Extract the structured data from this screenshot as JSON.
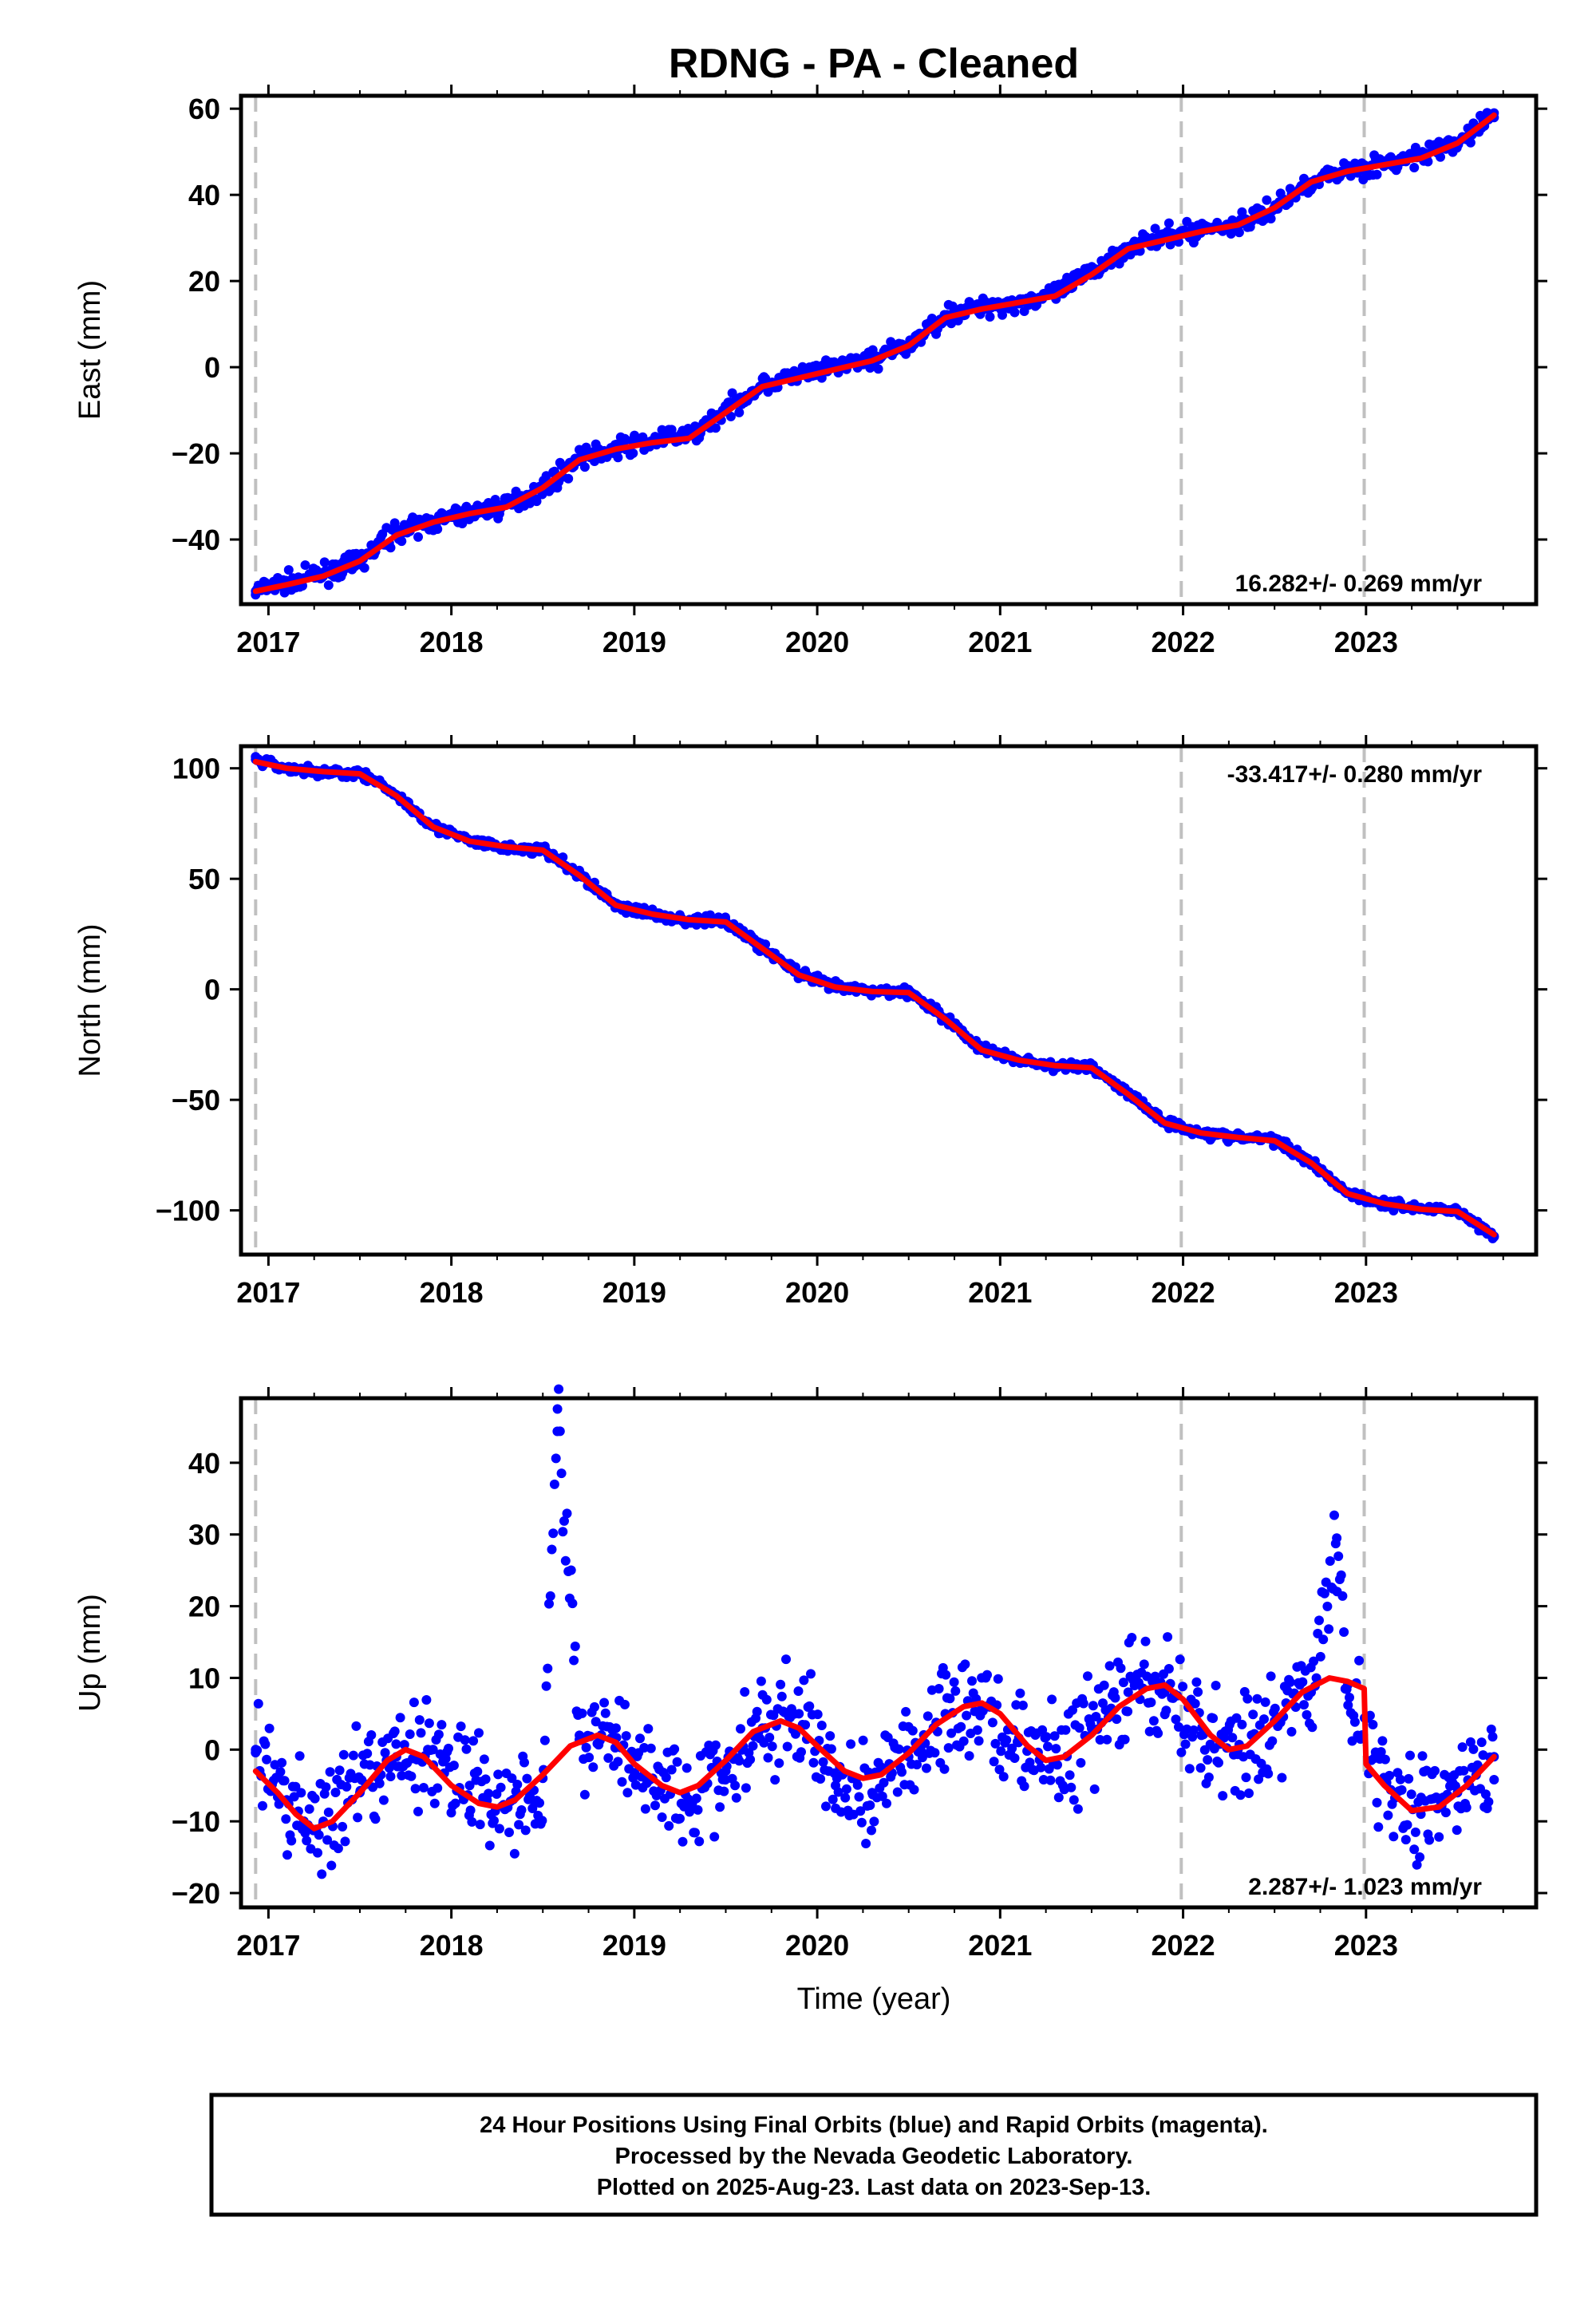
{
  "figure": {
    "title": "RDNG  - PA - Cleaned",
    "xlabel": "Time (year)",
    "footer": [
      "24 Hour Positions Using Final Orbits (blue) and Rapid Orbits (magenta).",
      "Processed by the Nevada Geodetic Laboratory.",
      "Plotted on 2025-Aug-23. Last data on 2023-Sep-13."
    ],
    "colors": {
      "points": "#0000ff",
      "fit": "#ff0000",
      "guides": "#c0c0c0",
      "frame": "#000000"
    },
    "x_tick_labels": [
      "2017",
      "2018",
      "2019",
      "2020",
      "2021",
      "2022",
      "2023"
    ],
    "vertical_guides_year": [
      2016.93,
      2021.99,
      2022.99
    ]
  },
  "chart_data": [
    {
      "type": "scatter",
      "panel": "east",
      "ylabel": "East (mm)",
      "rate_label": "16.282+/- 0.269 mm/yr",
      "rate_position": "bottom-right",
      "xlim": [
        2016.85,
        2023.93
      ],
      "ylim": [
        -55,
        63
      ],
      "yticks": [
        -40,
        -20,
        0,
        20,
        40,
        60
      ],
      "y_tick_labels": [
        "−40",
        "−20",
        "0",
        "20",
        "40",
        "60"
      ],
      "series": [
        {
          "role": "daily positions (blue)",
          "x": [
            2016.93,
            2017.1,
            2017.3,
            2017.5,
            2017.7,
            2017.9,
            2018.1,
            2018.3,
            2018.5,
            2018.7,
            2018.9,
            2019.1,
            2019.3,
            2019.5,
            2019.7,
            2019.9,
            2020.1,
            2020.3,
            2020.5,
            2020.7,
            2020.9,
            2021.1,
            2021.3,
            2021.5,
            2021.7,
            2021.9,
            2022.1,
            2022.3,
            2022.5,
            2022.7,
            2022.9,
            2023.1,
            2023.3,
            2023.5,
            2023.7
          ],
          "y": [
            -52,
            -50,
            -48,
            -45,
            -38,
            -36,
            -34,
            -32,
            -28,
            -21,
            -19,
            -17,
            -16,
            -10,
            -4,
            -2,
            0,
            2,
            5,
            12,
            14,
            15,
            17,
            22,
            28,
            30,
            32,
            33,
            37,
            43,
            46,
            47,
            49,
            52,
            59
          ]
        },
        {
          "role": "fit (red)",
          "x": [
            2016.93,
            2017.1,
            2017.3,
            2017.5,
            2017.7,
            2017.9,
            2018.1,
            2018.3,
            2018.5,
            2018.7,
            2018.9,
            2019.1,
            2019.3,
            2019.5,
            2019.7,
            2019.9,
            2020.1,
            2020.3,
            2020.5,
            2020.7,
            2020.9,
            2021.1,
            2021.3,
            2021.5,
            2021.7,
            2021.9,
            2022.1,
            2022.3,
            2022.5,
            2022.7,
            2022.9,
            2023.1,
            2023.3,
            2023.5,
            2023.7
          ],
          "y": [
            -52,
            -50.5,
            -48.5,
            -45,
            -39,
            -36,
            -34,
            -32.5,
            -28,
            -21.5,
            -19,
            -17.5,
            -16.5,
            -10.5,
            -4.5,
            -2.5,
            -0.5,
            1.5,
            5,
            11.5,
            13.5,
            15,
            16.5,
            21.5,
            27.5,
            29.5,
            31.5,
            33,
            37,
            43,
            45.5,
            47,
            48.5,
            52,
            58.5
          ]
        }
      ]
    },
    {
      "type": "scatter",
      "panel": "north",
      "ylabel": "North (mm)",
      "rate_label": "-33.417+/- 0.280 mm/yr",
      "rate_position": "top-right",
      "xlim": [
        2016.85,
        2023.93
      ],
      "ylim": [
        -120,
        110
      ],
      "yticks": [
        -100,
        -50,
        0,
        50,
        100
      ],
      "y_tick_labels": [
        "−100",
        "−50",
        "0",
        "50",
        "100"
      ],
      "series": [
        {
          "role": "daily positions (blue)",
          "x": [
            2016.93,
            2017.1,
            2017.3,
            2017.5,
            2017.7,
            2017.9,
            2018.1,
            2018.3,
            2018.5,
            2018.7,
            2018.9,
            2019.1,
            2019.3,
            2019.5,
            2019.7,
            2019.9,
            2020.1,
            2020.3,
            2020.5,
            2020.7,
            2020.9,
            2021.1,
            2021.3,
            2021.5,
            2021.7,
            2021.9,
            2022.1,
            2022.3,
            2022.5,
            2022.7,
            2022.9,
            2023.1,
            2023.3,
            2023.5,
            2023.7
          ],
          "y": [
            104,
            100,
            98,
            98,
            88,
            74,
            67,
            64,
            63,
            52,
            38,
            34,
            31,
            31,
            19,
            7,
            1,
            -1,
            -1,
            -13,
            -27,
            -32,
            -35,
            -35,
            -47,
            -60,
            -65,
            -67,
            -68,
            -78,
            -92,
            -97,
            -99,
            -100,
            -112
          ]
        },
        {
          "role": "fit (red)",
          "x": [
            2016.93,
            2017.1,
            2017.3,
            2017.5,
            2017.7,
            2017.9,
            2018.1,
            2018.3,
            2018.5,
            2018.7,
            2018.9,
            2019.1,
            2019.3,
            2019.5,
            2019.7,
            2019.9,
            2020.1,
            2020.3,
            2020.5,
            2020.7,
            2020.9,
            2021.1,
            2021.3,
            2021.5,
            2021.7,
            2021.9,
            2022.1,
            2022.3,
            2022.5,
            2022.7,
            2022.9,
            2023.1,
            2023.3,
            2023.5,
            2023.7
          ],
          "y": [
            103,
            100,
            98.5,
            97.5,
            87.5,
            73.5,
            67,
            64.5,
            63,
            51.5,
            38,
            34,
            31.5,
            30.5,
            18.5,
            6.5,
            1,
            -1,
            -1.5,
            -13.5,
            -27.5,
            -32,
            -34.5,
            -35.5,
            -47.5,
            -60.5,
            -65,
            -67,
            -68.5,
            -78.5,
            -92.5,
            -97,
            -99.5,
            -100.5,
            -111
          ]
        }
      ]
    },
    {
      "type": "scatter",
      "panel": "up",
      "ylabel": "Up (mm)",
      "rate_label": "2.287+/- 1.023 mm/yr",
      "rate_position": "bottom-right",
      "xlim": [
        2016.85,
        2023.93
      ],
      "ylim": [
        -22,
        49
      ],
      "yticks": [
        -20,
        -10,
        0,
        10,
        20,
        30,
        40
      ],
      "y_tick_labels": [
        "−20",
        "−10",
        "0",
        "10",
        "20",
        "30",
        "40"
      ],
      "series": [
        {
          "role": "daily positions (blue)",
          "x": [
            2016.93,
            2017.1,
            2017.3,
            2017.5,
            2017.7,
            2017.9,
            2018.1,
            2018.3,
            2018.5,
            2018.58,
            2018.7,
            2018.9,
            2019.1,
            2019.3,
            2019.5,
            2019.7,
            2019.9,
            2020.1,
            2020.3,
            2020.5,
            2020.7,
            2020.9,
            2021.1,
            2021.3,
            2021.5,
            2021.7,
            2021.9,
            2022.1,
            2022.3,
            2022.5,
            2022.7,
            2022.84,
            2022.9,
            2023.1,
            2023.3,
            2023.5,
            2023.7
          ],
          "y": [
            0,
            -7,
            -10,
            -6,
            -1,
            0,
            -5,
            -8,
            -4,
            47.5,
            2,
            3,
            -4,
            -8,
            -3,
            3,
            5,
            -5,
            -6,
            -1,
            5,
            6,
            1,
            -2,
            3,
            8,
            8,
            2,
            0,
            4,
            8,
            29.5,
            9,
            -4,
            -9,
            -6,
            -1
          ]
        },
        {
          "role": "fit (red)",
          "x": [
            2016.93,
            2017.05,
            2017.15,
            2017.25,
            2017.35,
            2017.5,
            2017.65,
            2017.75,
            2017.85,
            2018.0,
            2018.15,
            2018.25,
            2018.35,
            2018.5,
            2018.65,
            2018.8,
            2018.9,
            2019.0,
            2019.15,
            2019.25,
            2019.35,
            2019.5,
            2019.65,
            2019.8,
            2019.9,
            2020.0,
            2020.15,
            2020.25,
            2020.35,
            2020.5,
            2020.65,
            2020.8,
            2020.9,
            2021.0,
            2021.15,
            2021.25,
            2021.35,
            2021.5,
            2021.65,
            2021.8,
            2021.9,
            2022.0,
            2022.15,
            2022.25,
            2022.35,
            2022.5,
            2022.65,
            2022.8,
            2022.9,
            2022.99,
            2023.0,
            2023.1,
            2023.25,
            2023.4,
            2023.55,
            2023.7
          ],
          "y": [
            -3,
            -6,
            -9,
            -11,
            -10,
            -6,
            -1.5,
            0,
            -1,
            -5,
            -7.5,
            -8,
            -7,
            -3.5,
            0.5,
            2,
            1,
            -2,
            -5,
            -6,
            -5,
            -1.5,
            2.5,
            4,
            3,
            0.5,
            -3,
            -4,
            -3.5,
            -0.5,
            3.5,
            6,
            6.5,
            5,
            0.5,
            -1.5,
            -1,
            2,
            6,
            8.5,
            9,
            7,
            2,
            0,
            0.5,
            4,
            8,
            10,
            9.5,
            8.5,
            -2,
            -5,
            -8.5,
            -8,
            -5,
            -1
          ]
        }
      ]
    }
  ]
}
